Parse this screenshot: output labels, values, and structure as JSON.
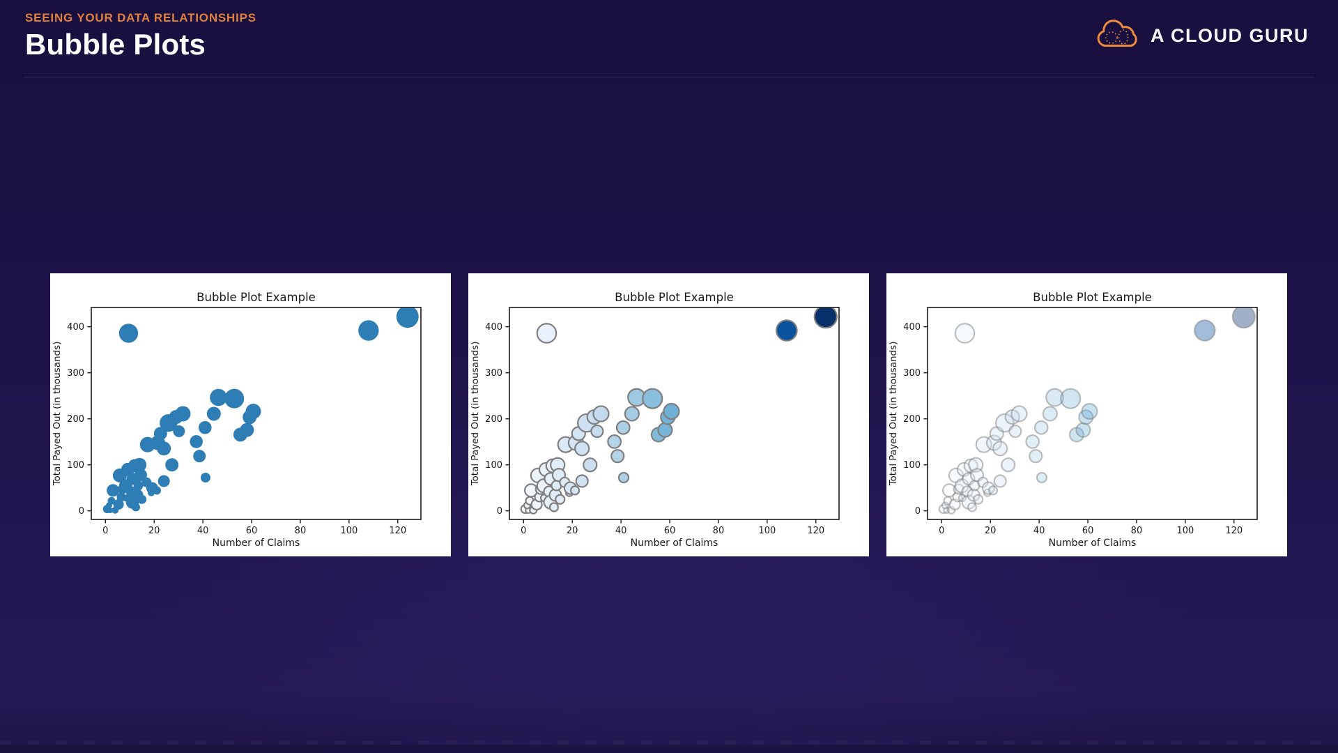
{
  "header": {
    "eyebrow": "SEEING YOUR DATA RELATIONSHIPS",
    "title": "Bubble Plots",
    "brand": "A CLOUD GURU"
  },
  "colors": {
    "background": "#1d1347",
    "accent_orange": "#e0813f",
    "logo_cloud_orange": "#ec8b3d",
    "divider": "rgba(255,255,255,0.13)",
    "card_background": "#ffffff",
    "axis_color": "#1a1a1a",
    "solid_bubble_blue": "#2f7db5",
    "bubble_edge_gray": "#7f7f7f"
  },
  "chart_data": {
    "type": "scatter",
    "title": "Bubble Plot Example",
    "xlabel": "Number of Claims",
    "ylabel": "Total Payed Out (in thousands)",
    "xticks": [
      0,
      20,
      40,
      60,
      80,
      100,
      120
    ],
    "yticks": [
      0,
      100,
      200,
      300,
      400
    ],
    "xlim": [
      -5.8,
      129.5
    ],
    "ylim": [
      -18.6,
      442
    ],
    "grid": false,
    "legend": null,
    "points_format": [
      "number_of_claims_x",
      "total_payed_out_y",
      "bubble_radius_px"
    ],
    "points": [
      [
        0.7,
        4,
        6
      ],
      [
        2,
        1,
        4
      ],
      [
        1.5,
        12,
        4.5
      ],
      [
        2.5,
        22,
        5.5
      ],
      [
        3.1,
        44.5,
        9
      ],
      [
        4,
        1.5,
        5
      ],
      [
        5.4,
        14,
        7.5
      ],
      [
        5.9,
        77,
        10
      ],
      [
        6.5,
        30,
        6.5
      ],
      [
        7,
        47,
        7
      ],
      [
        8.3,
        54.5,
        9.5
      ],
      [
        8.5,
        28,
        5
      ],
      [
        9.2,
        90,
        9.5
      ],
      [
        9.5,
        386,
        13.7
      ],
      [
        10.5,
        42,
        7.5
      ],
      [
        11.1,
        19,
        9.5
      ],
      [
        11.1,
        69.7,
        8.5
      ],
      [
        12,
        98,
        9.5
      ],
      [
        12.5,
        8,
        6
      ],
      [
        13.1,
        34.4,
        8.5
      ],
      [
        13.5,
        55,
        7
      ],
      [
        14,
        100,
        10
      ],
      [
        14.5,
        78,
        9
      ],
      [
        15,
        25,
        6.5
      ],
      [
        16.9,
        62,
        7
      ],
      [
        17.3,
        144,
        11
      ],
      [
        18.8,
        39.4,
        5
      ],
      [
        19.2,
        49.5,
        8.5
      ],
      [
        21.1,
        44.5,
        6
      ],
      [
        21.5,
        148,
        10.5
      ],
      [
        22.6,
        168,
        9.5
      ],
      [
        24,
        64.7,
        8.5
      ],
      [
        24,
        135.5,
        10
      ],
      [
        25.9,
        191,
        12.7
      ],
      [
        27.3,
        100,
        9.5
      ],
      [
        29,
        204,
        10
      ],
      [
        30.2,
        173,
        8.5
      ],
      [
        31.8,
        211,
        11
      ],
      [
        37.3,
        150.5,
        9.3
      ],
      [
        38.6,
        119,
        9
      ],
      [
        40.9,
        181,
        9.3
      ],
      [
        41.1,
        72.3,
        7
      ],
      [
        44.5,
        211,
        10
      ],
      [
        46.4,
        246.5,
        12.3
      ],
      [
        52.9,
        244,
        14
      ],
      [
        55.4,
        165.7,
        10
      ],
      [
        58.1,
        175.8,
        10
      ],
      [
        59.2,
        203.6,
        10
      ],
      [
        60.7,
        216.2,
        11
      ],
      [
        108,
        392,
        14.7
      ],
      [
        124,
        422,
        16
      ]
    ],
    "variants": [
      {
        "name": "solid-blue",
        "fill": "solid",
        "color": "#2f7db5",
        "edge": null,
        "alpha": 1
      },
      {
        "name": "blues-colormap-gray-edge",
        "fill": "colormap",
        "colormap": "Blues",
        "color_by": "x",
        "edge": "#7f7f7f",
        "alpha": 1
      },
      {
        "name": "blues-colormap-transparent",
        "fill": "colormap",
        "colormap": "Blues",
        "color_by": "x",
        "edge": "#7f7f7f",
        "alpha": 0.38
      }
    ],
    "colormap_blues_anchors": [
      "#f7fbff",
      "#deebf7",
      "#c6dbef",
      "#9ecae1",
      "#6baed6",
      "#4292c6",
      "#2171b5",
      "#08519c",
      "#08306b"
    ],
    "colormap_domain_x": [
      0,
      124
    ]
  }
}
